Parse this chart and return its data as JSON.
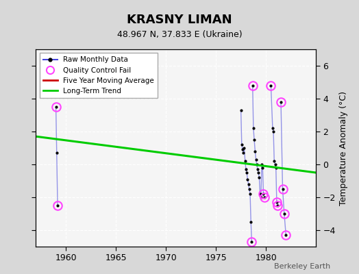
{
  "title": "KRASNY LIMAN",
  "subtitle": "48.967 N, 37.833 E (Ukraine)",
  "ylabel": "Temperature Anomaly (°C)",
  "credit": "Berkeley Earth",
  "xlim": [
    1957,
    1985
  ],
  "ylim": [
    -5,
    7
  ],
  "yticks": [
    -4,
    -2,
    0,
    2,
    4,
    6
  ],
  "xticks": [
    1960,
    1965,
    1970,
    1975,
    1980
  ],
  "background_color": "#d8d8d8",
  "plot_bg_color": "#f5f5f5",
  "segments": [
    [
      [
        1959.0,
        3.5
      ],
      [
        1959.08,
        0.7
      ],
      [
        1959.17,
        -2.5
      ]
    ],
    [
      [
        1977.5,
        3.3
      ],
      [
        1977.58,
        1.2
      ],
      [
        1977.67,
        0.9
      ],
      [
        1977.75,
        0.7
      ],
      [
        1977.83,
        1.0
      ],
      [
        1977.92,
        0.2
      ],
      [
        1978.0,
        -0.3
      ],
      [
        1978.08,
        -0.5
      ],
      [
        1978.17,
        -0.9
      ],
      [
        1978.25,
        -1.2
      ],
      [
        1978.33,
        -1.5
      ],
      [
        1978.42,
        -1.8
      ],
      [
        1978.5,
        -3.5
      ],
      [
        1978.58,
        -4.7
      ]
    ],
    [
      [
        1978.67,
        4.8
      ],
      [
        1978.75,
        2.2
      ],
      [
        1978.83,
        1.5
      ],
      [
        1978.92,
        0.8
      ],
      [
        1979.0,
        0.3
      ],
      [
        1979.08,
        0.0
      ],
      [
        1979.17,
        -0.3
      ],
      [
        1979.25,
        -0.5
      ],
      [
        1979.33,
        -0.8
      ],
      [
        1979.42,
        -1.8
      ],
      [
        1979.5,
        -2.0
      ],
      [
        1979.58,
        0.0
      ],
      [
        1979.67,
        -0.2
      ],
      [
        1979.75,
        -1.8
      ],
      [
        1979.83,
        -2.0
      ]
    ],
    [
      [
        1980.5,
        4.8
      ],
      [
        1980.67,
        2.2
      ],
      [
        1980.75,
        2.0
      ],
      [
        1980.83,
        0.2
      ],
      [
        1980.92,
        0.0
      ],
      [
        1981.0,
        -0.2
      ],
      [
        1981.08,
        -2.3
      ],
      [
        1981.17,
        -2.5
      ]
    ],
    [
      [
        1981.5,
        3.8
      ],
      [
        1981.67,
        -1.5
      ],
      [
        1981.83,
        -3.0
      ],
      [
        1982.0,
        -4.3
      ]
    ]
  ],
  "qc_fail": [
    [
      1959.0,
      3.5
    ],
    [
      1959.17,
      -2.5
    ],
    [
      1978.67,
      4.8
    ],
    [
      1978.58,
      -4.7
    ],
    [
      1979.75,
      -1.8
    ],
    [
      1979.83,
      -2.0
    ],
    [
      1980.5,
      4.8
    ],
    [
      1981.08,
      -2.3
    ],
    [
      1981.17,
      -2.5
    ],
    [
      1981.5,
      3.8
    ],
    [
      1981.67,
      -1.5
    ],
    [
      1981.83,
      -3.0
    ],
    [
      1982.0,
      -4.3
    ]
  ],
  "trend_x": [
    1957,
    1985
  ],
  "trend_y": [
    1.7,
    -0.5
  ],
  "raw_color": "#4444dd",
  "qc_color": "#ff44ff",
  "trend_color": "#00cc00",
  "moving_avg_color": "#cc0000"
}
